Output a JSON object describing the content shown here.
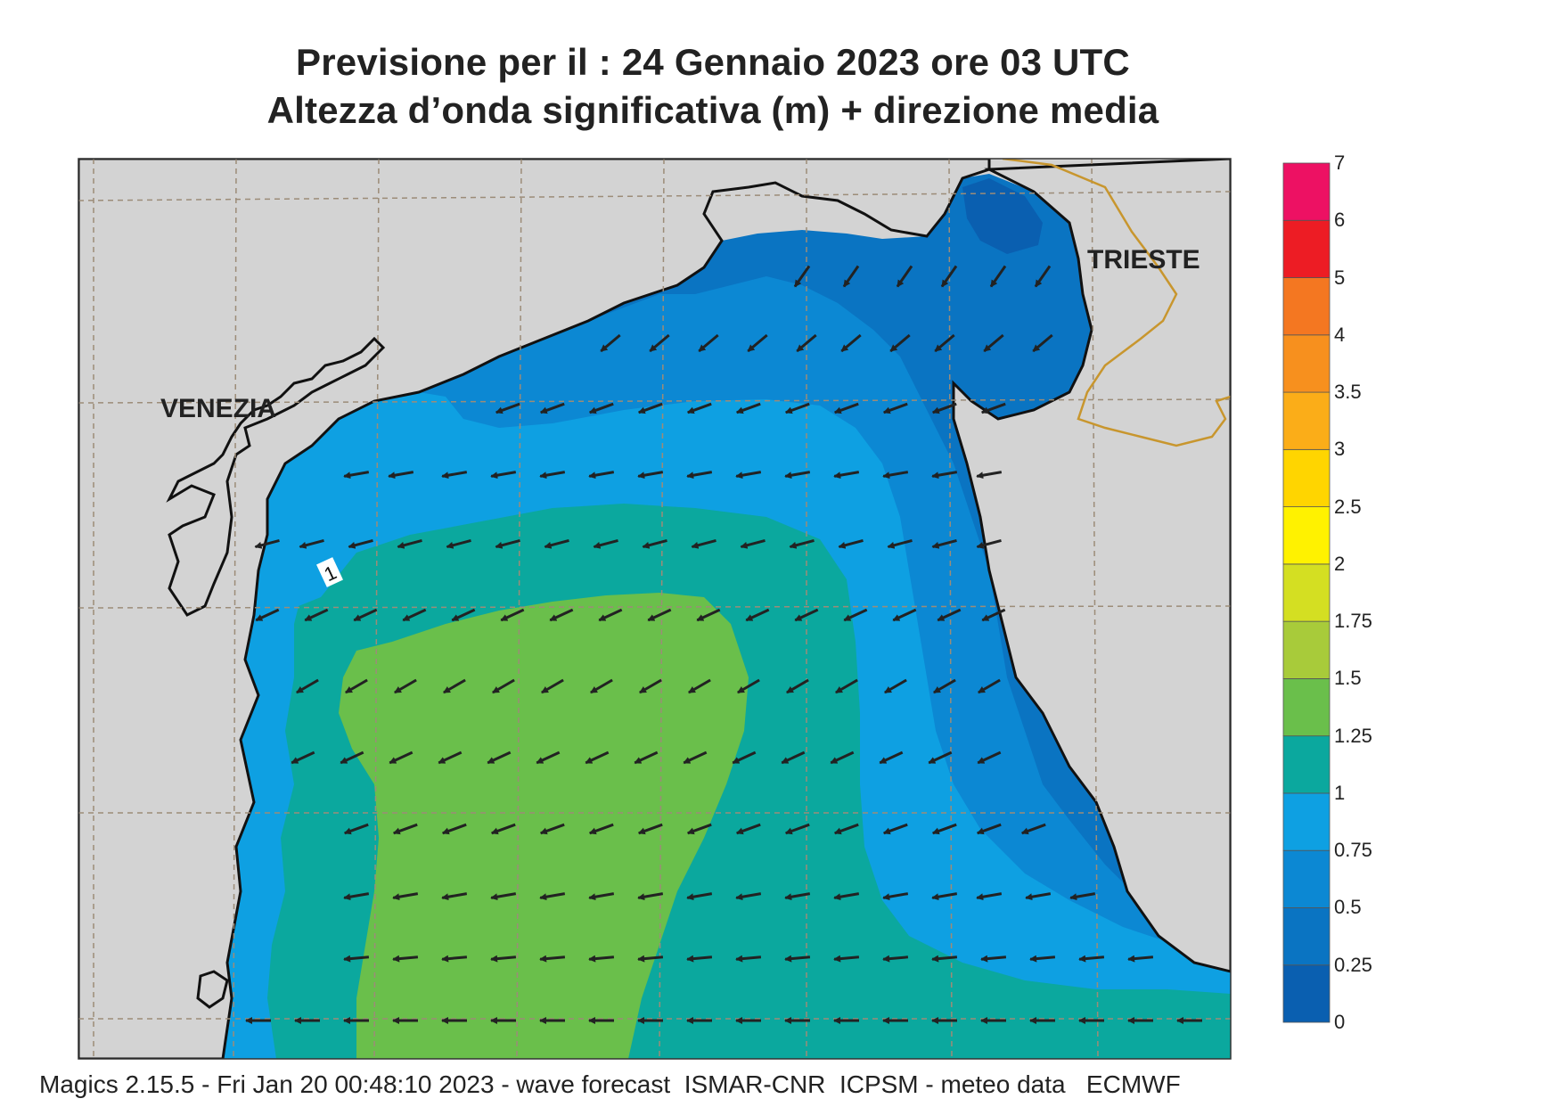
{
  "title": {
    "line1": "Previsione per il  :  24  Gennaio  2023   ore 03 UTC",
    "line2": "Altezza d’onda significativa (m) + direzione media"
  },
  "map": {
    "labels": {
      "venezia": "VENEZIA",
      "trieste": "TRIESTE",
      "contour_label": "1"
    },
    "colors": {
      "land": "#d3d3d3",
      "grid": "#9c8c78",
      "border": "#c8962e",
      "coast": "#111111",
      "arrow": "#222222"
    }
  },
  "legend": {
    "levels": [
      "0",
      "0.25",
      "0.5",
      "0.75",
      "1",
      "1.25",
      "1.5",
      "1.75",
      "2",
      "2.5",
      "3",
      "3.5",
      "4",
      "5",
      "6",
      "7"
    ],
    "colors": [
      "#0a5fb0",
      "#0a74c2",
      "#0c88d3",
      "#0ea0e2",
      "#0ba89e",
      "#6abf4b",
      "#a8cb3a",
      "#d4df22",
      "#fff200",
      "#ffd500",
      "#fbad18",
      "#f7901e",
      "#f47721",
      "#ed1c24",
      "#ed1163"
    ]
  },
  "footer": {
    "text": "Magics 2.15.5 - Fri Jan 20 00:48:10 2023 - wave forecast  ISMAR-CNR  ICPSM - meteo data   ECMWF"
  }
}
